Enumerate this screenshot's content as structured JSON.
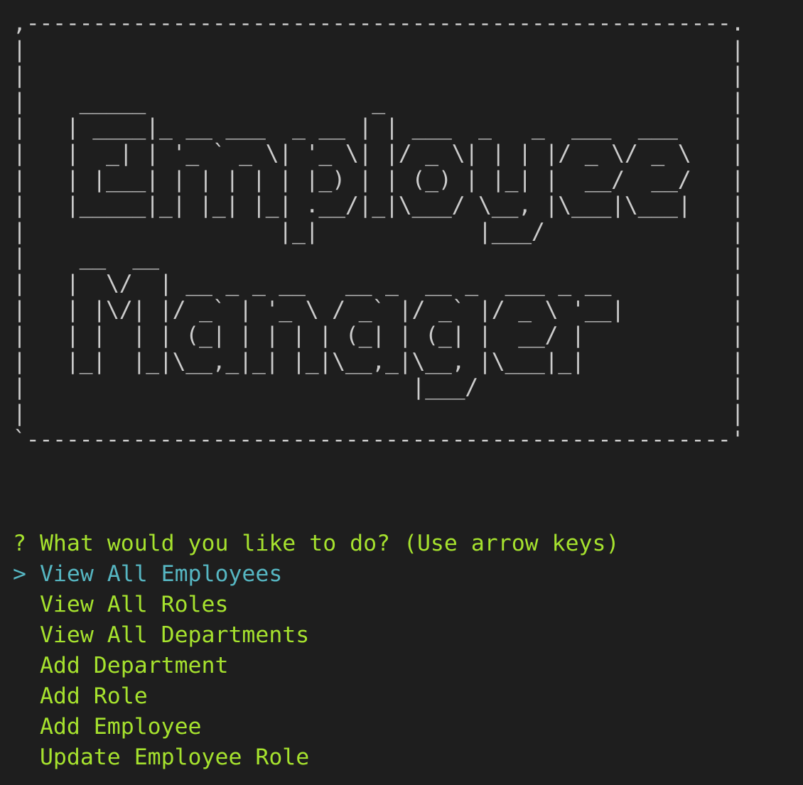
{
  "terminal": {
    "banner": {
      "lines": [
        ",-----------------------------------------------------.",
        "|                                                     |",
        "|                                                     |",
        "|    _____                 _                          |",
        "|   | ____|_ __ ___  _ __ | | ___  _   _  ___  ___    |",
        "|   |  _| | '_ ` _ \\| '_ \\| |/ _ \\| | | |/ _ \\/ _ \\   |",
        "|   | |___| | | | | | |_) | | (_) | |_| |  __/  __/   |",
        "|   |_____|_| |_| |_| .__/|_|\\___/ \\__, |\\___|\\___|   |",
        "|                   |_|            |___/              |",
        "|    __  __                                           |",
        "|   |  \\/  | __ _ _ __   __ _  __ _  ___ _ __         |",
        "|   | |\\/| |/ _` | '_ \\ / _` |/ _` |/ _ \\ '__|        |",
        "|   | |  | | (_| | | | | (_| | (_| |  __/ |           |",
        "|   |_|  |_|\\__,_|_| |_|\\__,_|\\__, |\\___|_|           |",
        "|                             |___/                   |",
        "|                                                     |",
        "`-----------------------------------------------------'"
      ]
    },
    "prompt": {
      "symbol": "?",
      "question": "What would you like to do?",
      "hint": "(Use arrow keys)"
    },
    "pointer": ">",
    "choices": [
      "View All Employees",
      "View All Roles",
      "View All Departments",
      "Add Department",
      "Add Role",
      "Add Employee",
      "Update Employee Role"
    ],
    "colors": {
      "background": "#1e1e1e",
      "banner_text": "#cccccc",
      "prompt_text": "#a6e22e",
      "selected_text": "#56b6c2"
    }
  }
}
